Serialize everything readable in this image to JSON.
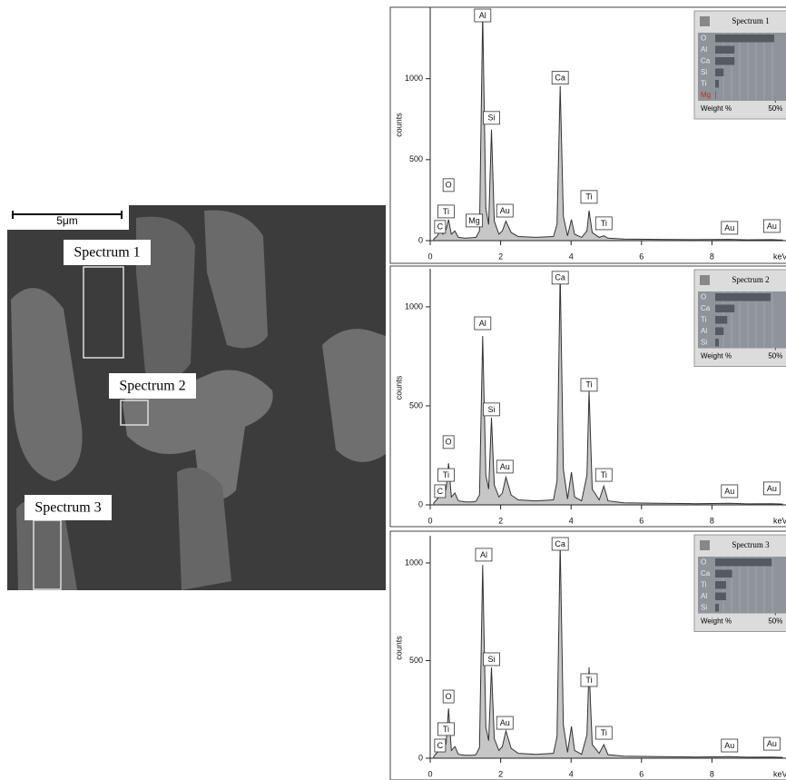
{
  "image": {
    "scale_label": "5μm",
    "regions": [
      {
        "label": "Spectrum 1"
      },
      {
        "label": "Spectrum 2"
      },
      {
        "label": "Spectrum 3"
      }
    ]
  },
  "chart_data": [
    {
      "type": "area",
      "ylabel": "counts",
      "xlabel": "keV",
      "xlim": [
        0,
        10
      ],
      "ylim": [
        0,
        1430
      ],
      "xticks": [
        0,
        2,
        4,
        6,
        8
      ],
      "yticks": [
        0,
        500,
        1000
      ],
      "color": "#c6c6c6",
      "line_color": "#333333",
      "x": [
        0.1,
        0.2,
        0.28,
        0.36,
        0.45,
        0.52,
        0.6,
        0.7,
        0.8,
        1.0,
        1.2,
        1.3,
        1.4,
        1.49,
        1.58,
        1.66,
        1.74,
        1.82,
        1.95,
        2.05,
        2.15,
        2.3,
        2.5,
        3.0,
        3.5,
        3.6,
        3.69,
        3.78,
        3.9,
        4.01,
        4.1,
        4.3,
        4.45,
        4.51,
        4.6,
        4.8,
        4.93,
        5.05,
        5.5,
        6.5,
        7.5,
        8.5,
        9.0,
        9.7,
        10.0
      ],
      "values": [
        10,
        30,
        60,
        40,
        70,
        130,
        40,
        60,
        20,
        15,
        18,
        20,
        60,
        1404,
        200,
        100,
        685,
        120,
        40,
        60,
        120,
        50,
        25,
        20,
        25,
        100,
        955,
        150,
        30,
        130,
        40,
        20,
        60,
        185,
        50,
        20,
        30,
        15,
        10,
        8,
        6,
        8,
        5,
        6,
        4
      ],
      "annotations": [
        {
          "text": "C",
          "x": 0.28,
          "y": 85
        },
        {
          "text": "Ti",
          "x": 0.45,
          "y": 180
        },
        {
          "text": "O",
          "x": 0.52,
          "y": 343
        },
        {
          "text": "Mg",
          "x": 1.25,
          "y": 124
        },
        {
          "text": "Al",
          "x": 1.49,
          "y": 1404
        },
        {
          "text": "Si",
          "x": 1.74,
          "y": 758
        },
        {
          "text": "Au",
          "x": 2.12,
          "y": 185
        },
        {
          "text": "Ca",
          "x": 3.69,
          "y": 1006
        },
        {
          "text": "Ti",
          "x": 4.51,
          "y": 270
        },
        {
          "text": "Ti",
          "x": 4.93,
          "y": 107
        },
        {
          "text": "Au",
          "x": 8.5,
          "y": 79
        },
        {
          "text": "Au",
          "x": 9.7,
          "y": 90
        }
      ],
      "inset": {
        "title": "Spectrum 1",
        "categories": [
          "O",
          "Al",
          "Ca",
          "Si",
          "Ti",
          "Mg"
        ],
        "values": [
          49,
          16,
          16,
          7,
          3,
          0.5
        ],
        "label_colors": [
          "#eeeeee",
          "#eeeeee",
          "#eeeeee",
          "#eeeeee",
          "#eeeeee",
          "#e02020"
        ],
        "color": "#555a60",
        "xlabel": "Weight %",
        "xlim": [
          0,
          52
        ],
        "xticks": [
          {
            "value": 50,
            "label": "50%"
          }
        ]
      }
    },
    {
      "type": "area",
      "ylabel": "counts",
      "xlabel": "keV",
      "xlim": [
        0,
        10
      ],
      "ylim": [
        0,
        1183
      ],
      "xticks": [
        0,
        2,
        4,
        6,
        8
      ],
      "yticks": [
        0,
        500,
        1000
      ],
      "color": "#c6c6c6",
      "line_color": "#333333",
      "x": [
        0.1,
        0.2,
        0.28,
        0.36,
        0.45,
        0.52,
        0.6,
        0.7,
        0.8,
        1.0,
        1.2,
        1.3,
        1.4,
        1.49,
        1.58,
        1.66,
        1.74,
        1.82,
        1.95,
        2.05,
        2.15,
        2.3,
        2.5,
        3.0,
        3.5,
        3.6,
        3.69,
        3.78,
        3.9,
        4.01,
        4.1,
        4.3,
        4.45,
        4.51,
        4.6,
        4.8,
        4.93,
        5.05,
        5.5,
        6.5,
        7.5,
        8.5,
        9.0,
        9.7,
        10.0
      ],
      "values": [
        10,
        30,
        50,
        40,
        80,
        210,
        40,
        60,
        20,
        15,
        15,
        18,
        50,
        853,
        150,
        80,
        440,
        100,
        40,
        60,
        140,
        50,
        25,
        20,
        25,
        120,
        1170,
        180,
        30,
        165,
        40,
        20,
        150,
        578,
        80,
        25,
        95,
        20,
        10,
        8,
        6,
        8,
        5,
        6,
        4
      ],
      "annotations": [
        {
          "text": "C",
          "x": 0.28,
          "y": 69
        },
        {
          "text": "Ti",
          "x": 0.45,
          "y": 151
        },
        {
          "text": "O",
          "x": 0.52,
          "y": 317
        },
        {
          "text": "Al",
          "x": 1.49,
          "y": 917
        },
        {
          "text": "Si",
          "x": 1.74,
          "y": 482
        },
        {
          "text": "Au",
          "x": 2.12,
          "y": 193
        },
        {
          "text": "Ca",
          "x": 3.69,
          "y": 1147
        },
        {
          "text": "Ti",
          "x": 4.51,
          "y": 606
        },
        {
          "text": "Ti",
          "x": 4.93,
          "y": 151
        },
        {
          "text": "Au",
          "x": 8.5,
          "y": 69
        },
        {
          "text": "Au",
          "x": 9.7,
          "y": 83
        }
      ],
      "inset": {
        "title": "Spectrum 2",
        "categories": [
          "O",
          "Ca",
          "Ti",
          "Al",
          "Si"
        ],
        "values": [
          46,
          16,
          10,
          7,
          3
        ],
        "label_colors": [
          "#eeeeee",
          "#eeeeee",
          "#eeeeee",
          "#eeeeee",
          "#eeeeee"
        ],
        "color": "#555a60",
        "xlabel": "Weight %",
        "xlim": [
          0,
          52
        ],
        "xticks": [
          {
            "value": 50,
            "label": "50%"
          }
        ]
      }
    },
    {
      "type": "area",
      "ylabel": "counts",
      "xlabel": "keV",
      "xlim": [
        0,
        10
      ],
      "ylim": [
        0,
        1130
      ],
      "xticks": [
        0,
        2,
        4,
        6,
        8
      ],
      "yticks": [
        0,
        500,
        1000
      ],
      "color": "#c6c6c6",
      "line_color": "#333333",
      "x": [
        0.1,
        0.2,
        0.28,
        0.36,
        0.45,
        0.52,
        0.6,
        0.7,
        0.8,
        1.0,
        1.2,
        1.3,
        1.4,
        1.49,
        1.58,
        1.66,
        1.74,
        1.82,
        1.95,
        2.05,
        2.15,
        2.3,
        2.5,
        3.0,
        3.5,
        3.6,
        3.69,
        3.78,
        3.9,
        4.01,
        4.1,
        4.3,
        4.45,
        4.51,
        4.6,
        4.8,
        4.93,
        5.05,
        5.5,
        6.5,
        7.5,
        8.5,
        9.0,
        9.7,
        10.0
      ],
      "values": [
        10,
        30,
        50,
        40,
        75,
        255,
        40,
        60,
        20,
        15,
        15,
        18,
        55,
        990,
        160,
        90,
        465,
        100,
        40,
        60,
        140,
        50,
        25,
        20,
        25,
        110,
        1095,
        170,
        30,
        163,
        40,
        20,
        120,
        465,
        70,
        25,
        70,
        18,
        10,
        8,
        6,
        8,
        5,
        6,
        4
      ],
      "annotations": [
        {
          "text": "C",
          "x": 0.28,
          "y": 65
        },
        {
          "text": "Ti",
          "x": 0.45,
          "y": 149
        },
        {
          "text": "O",
          "x": 0.52,
          "y": 316
        },
        {
          "text": "Al",
          "x": 1.52,
          "y": 1042
        },
        {
          "text": "Si",
          "x": 1.74,
          "y": 507
        },
        {
          "text": "Au",
          "x": 2.12,
          "y": 181
        },
        {
          "text": "Ca",
          "x": 3.69,
          "y": 1107
        },
        {
          "text": "Ti",
          "x": 4.51,
          "y": 400
        },
        {
          "text": "Ti",
          "x": 4.93,
          "y": 130
        },
        {
          "text": "Au",
          "x": 8.5,
          "y": 65
        },
        {
          "text": "Au",
          "x": 9.7,
          "y": 74
        }
      ],
      "inset": {
        "title": "Spectrum 3",
        "categories": [
          "O",
          "Ca",
          "Ti",
          "Al",
          "Si"
        ],
        "values": [
          47,
          14,
          9,
          9,
          3
        ],
        "label_colors": [
          "#eeeeee",
          "#eeeeee",
          "#eeeeee",
          "#eeeeee",
          "#eeeeee"
        ],
        "color": "#555a60",
        "xlabel": "Weight %",
        "xlim": [
          0,
          52
        ],
        "xticks": [
          {
            "value": 50,
            "label": "50%"
          }
        ]
      }
    }
  ]
}
